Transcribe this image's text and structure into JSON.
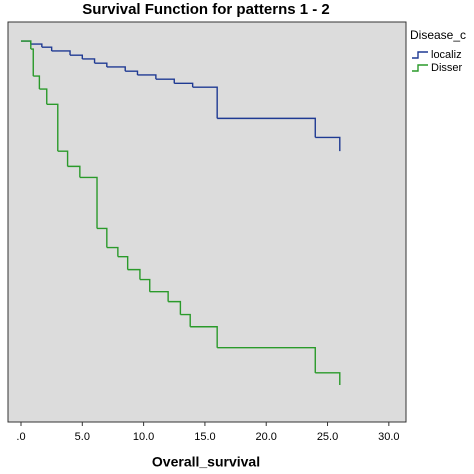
{
  "chart_data": {
    "type": "step",
    "title": "Survival Function for patterns 1 - 2",
    "x_label": "Overall_survival",
    "legend_title": "Disease_c",
    "legend": "right",
    "background": "#dcdcdc",
    "xlim": [
      -1.06,
      31.4
    ],
    "ylim": [
      0,
      1.05
    ],
    "xticks": [
      {
        "value": 0,
        "label": ".0"
      },
      {
        "value": 5,
        "label": "5.0"
      },
      {
        "value": 10,
        "label": "10.0"
      },
      {
        "value": 15,
        "label": "15.0"
      },
      {
        "value": 20,
        "label": "20.0"
      },
      {
        "value": 25,
        "label": "25.0"
      },
      {
        "value": 30,
        "label": "30.0"
      }
    ],
    "series": [
      {
        "name": "localiz",
        "color": "#1f3a93",
        "x": [
          0,
          0.8,
          1.7,
          2.5,
          4,
          5,
          6,
          7,
          8.5,
          9.5,
          11,
          12.5,
          14,
          16,
          24,
          26
        ],
        "values": [
          1.0,
          0.992,
          0.984,
          0.974,
          0.963,
          0.953,
          0.942,
          0.932,
          0.921,
          0.911,
          0.9,
          0.889,
          0.879,
          0.797,
          0.747,
          0.711
        ]
      },
      {
        "name": "Disser",
        "color": "#2a9a2a",
        "x": [
          0,
          0.8,
          1.0,
          1.5,
          2.1,
          3,
          3.8,
          4.8,
          6.2,
          7,
          7.9,
          8.7,
          9.7,
          10.5,
          12,
          13,
          13.8,
          16,
          24,
          26
        ],
        "values": [
          1.0,
          0.979,
          0.908,
          0.874,
          0.834,
          0.711,
          0.671,
          0.642,
          0.508,
          0.458,
          0.434,
          0.4,
          0.374,
          0.342,
          0.316,
          0.282,
          0.25,
          0.195,
          0.129,
          0.097
        ]
      }
    ]
  }
}
